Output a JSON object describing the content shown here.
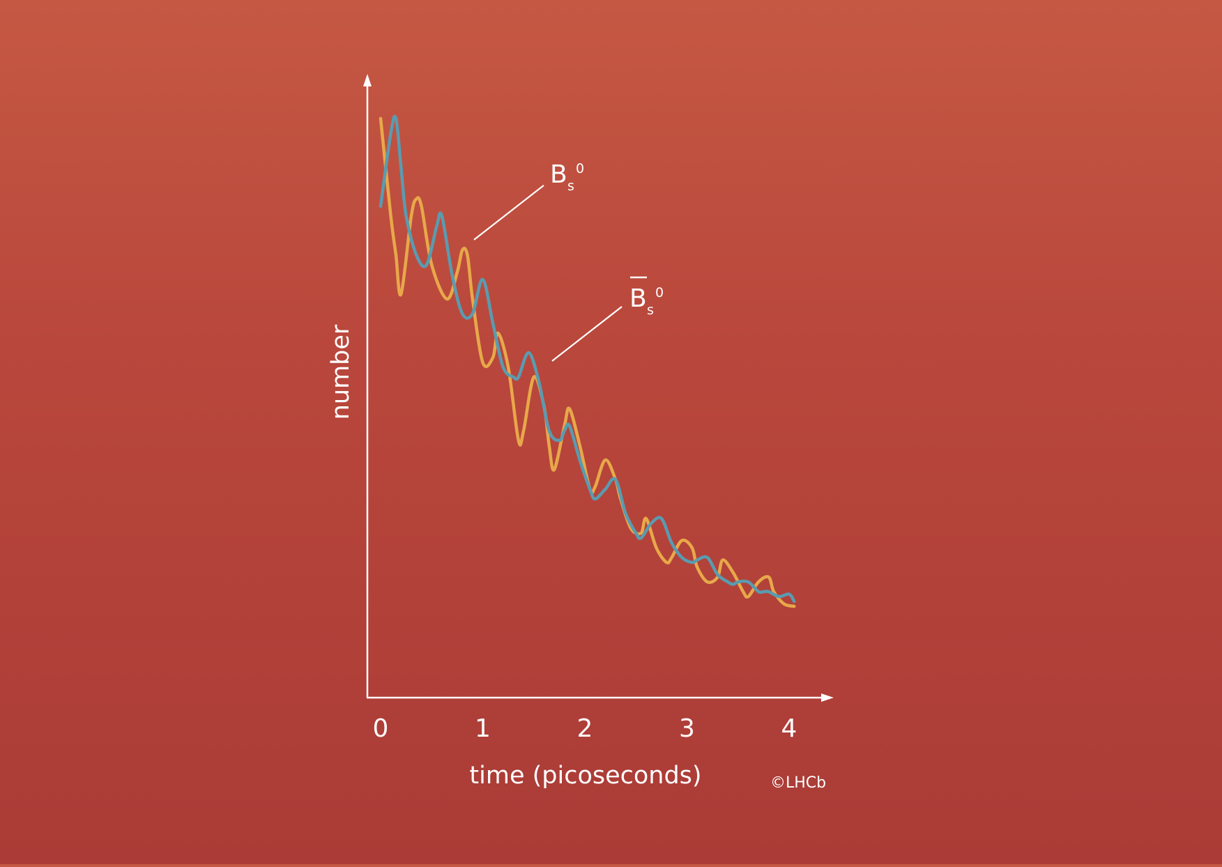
{
  "chart_data": {
    "type": "line",
    "title": "",
    "xlabel": "time (picoseconds)",
    "ylabel": "number",
    "x_ticks": [
      "0",
      "1",
      "2",
      "3",
      "4"
    ],
    "xlim": [
      0,
      4.05
    ],
    "grid": false,
    "series": [
      {
        "name": "B_s^0",
        "label": {
          "main": "B",
          "sub": "s",
          "sup": "0",
          "bar": false
        },
        "color": "#e8a84a",
        "x": [
          0.0,
          0.1,
          0.15,
          0.2,
          0.3,
          0.35,
          0.4,
          0.5,
          0.65,
          0.75,
          0.8,
          0.85,
          0.9,
          1.0,
          1.1,
          1.15,
          1.25,
          1.35,
          1.4,
          1.5,
          1.6,
          1.65,
          1.7,
          1.8,
          1.85,
          1.95,
          2.05,
          2.1,
          2.2,
          2.3,
          2.35,
          2.45,
          2.55,
          2.6,
          2.7,
          2.8,
          2.85,
          2.95,
          3.05,
          3.1,
          3.2,
          3.3,
          3.35,
          3.45,
          3.55,
          3.6,
          3.7,
          3.8,
          3.85,
          3.95,
          4.05
        ],
        "values": [
          1.0,
          0.8,
          0.72,
          0.64,
          0.8,
          0.835,
          0.82,
          0.7,
          0.63,
          0.685,
          0.73,
          0.72,
          0.63,
          0.5,
          0.51,
          0.56,
          0.49,
          0.34,
          0.36,
          0.47,
          0.41,
          0.33,
          0.28,
          0.37,
          0.405,
          0.33,
          0.24,
          0.245,
          0.3,
          0.26,
          0.22,
          0.16,
          0.15,
          0.18,
          0.12,
          0.09,
          0.1,
          0.135,
          0.12,
          0.08,
          0.05,
          0.06,
          0.095,
          0.07,
          0.03,
          0.02,
          0.05,
          0.06,
          0.03,
          0.005,
          0.0
        ]
      },
      {
        "name": "B̄_s^0",
        "label": {
          "main": "B",
          "sub": "s",
          "sup": "0",
          "bar": true
        },
        "color": "#5a9bb0",
        "x": [
          0.0,
          0.1,
          0.15,
          0.2,
          0.25,
          0.35,
          0.45,
          0.55,
          0.6,
          0.7,
          0.8,
          0.9,
          1.0,
          1.1,
          1.2,
          1.3,
          1.35,
          1.45,
          1.55,
          1.65,
          1.75,
          1.8,
          1.85,
          1.95,
          2.05,
          2.1,
          2.2,
          2.3,
          2.4,
          2.5,
          2.55,
          2.65,
          2.75,
          2.85,
          2.95,
          3.05,
          3.1,
          3.2,
          3.3,
          3.4,
          3.45,
          3.5,
          3.6,
          3.7,
          3.75,
          3.8,
          3.9,
          4.0,
          4.05
        ],
        "values": [
          0.82,
          0.97,
          1.0,
          0.9,
          0.8,
          0.72,
          0.7,
          0.78,
          0.8,
          0.68,
          0.6,
          0.6,
          0.67,
          0.58,
          0.49,
          0.47,
          0.47,
          0.52,
          0.46,
          0.36,
          0.34,
          0.36,
          0.37,
          0.3,
          0.24,
          0.22,
          0.24,
          0.26,
          0.19,
          0.15,
          0.14,
          0.17,
          0.18,
          0.13,
          0.1,
          0.09,
          0.095,
          0.1,
          0.065,
          0.05,
          0.045,
          0.05,
          0.05,
          0.03,
          0.03,
          0.03,
          0.02,
          0.025,
          0.01
        ]
      }
    ],
    "y_scale": {
      "top_value": 1.0,
      "bottom_value": 0.0
    }
  },
  "credit": "©LHCb"
}
